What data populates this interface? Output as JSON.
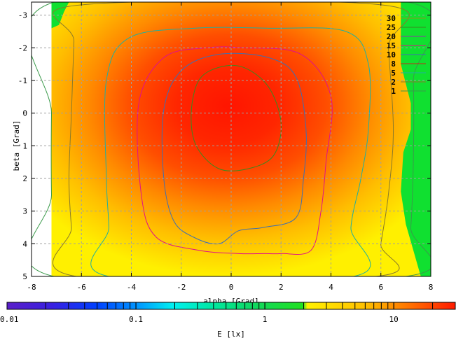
{
  "chart_data": {
    "type": "heatmap",
    "title": "",
    "xlabel": "alpha [Grad]",
    "ylabel": "beta [Grad]",
    "colorbar_label": "E [lx]",
    "xlim": [
      -8,
      8
    ],
    "ylim": [
      -3.4,
      5
    ],
    "y_inverted": true,
    "x_ticks": [
      "-8",
      "-6",
      "-4",
      "-2",
      "0",
      "2",
      "4",
      "6",
      "8"
    ],
    "y_ticks": [
      "-3",
      "-2",
      "-1",
      "0",
      "1",
      "2",
      "3",
      "4",
      "5"
    ],
    "colorbar_ticks": [
      "0.01",
      "0.1",
      "1",
      "10"
    ],
    "colorbar_scale": "log",
    "colorbar_range": [
      0.01,
      30
    ],
    "grid": true,
    "legend_position": "top-right",
    "contour_levels": [
      {
        "label": "30",
        "value": 30,
        "color": "#8a9a1c"
      },
      {
        "label": "25",
        "value": 25,
        "color": "#3a8a1e"
      },
      {
        "label": "20",
        "value": 20,
        "color": "#8a3fa0"
      },
      {
        "label": "15",
        "value": 15,
        "color": "#e0108a"
      },
      {
        "label": "10",
        "value": 10,
        "color": "#3f6fb0"
      },
      {
        "label": "8",
        "value": 8,
        "color": "#c03018"
      },
      {
        "label": "5",
        "value": 5,
        "color": "#1fb0a0"
      },
      {
        "label": "2",
        "value": 2,
        "color": "#8a7a2a"
      },
      {
        "label": "1",
        "value": 1,
        "color": "#3a9a4a"
      }
    ],
    "contours": [
      {
        "level": 25,
        "points": [
          [
            -1.3,
            -1.0
          ],
          [
            -0.5,
            -1.4
          ],
          [
            0.5,
            -1.4
          ],
          [
            1.5,
            -0.8
          ],
          [
            2.0,
            0.3
          ],
          [
            1.7,
            1.3
          ],
          [
            0.7,
            1.7
          ],
          [
            -0.5,
            1.7
          ],
          [
            -1.4,
            1.0
          ],
          [
            -1.6,
            0.0
          ]
        ]
      },
      {
        "level": 15,
        "points": [
          [
            -3.7,
            -0.3
          ],
          [
            -2.7,
            -1.7
          ],
          [
            -1.0,
            -2.0
          ],
          [
            0.5,
            -2.0
          ],
          [
            2.8,
            -1.8
          ],
          [
            4.0,
            -0.5
          ],
          [
            3.8,
            1.5
          ],
          [
            3.6,
            3.0
          ],
          [
            3.2,
            4.2
          ],
          [
            2.0,
            4.3
          ],
          [
            1.3,
            4.3
          ],
          [
            0.3,
            4.3
          ],
          [
            -1.3,
            4.2
          ],
          [
            -3.0,
            3.8
          ],
          [
            -3.6,
            2.5
          ]
        ]
      },
      {
        "level": 10,
        "points": [
          [
            -2.7,
            -0.1
          ],
          [
            -2.0,
            -1.3
          ],
          [
            -0.5,
            -1.8
          ],
          [
            1.5,
            -1.7
          ],
          [
            2.6,
            -1.1
          ],
          [
            3.0,
            0.5
          ],
          [
            2.9,
            2.0
          ],
          [
            2.6,
            3.2
          ],
          [
            1.3,
            3.5
          ],
          [
            0.3,
            3.6
          ],
          [
            -0.5,
            4.0
          ],
          [
            -1.5,
            3.8
          ],
          [
            -2.3,
            3.3
          ],
          [
            -2.7,
            2.0
          ]
        ]
      },
      {
        "level": 5,
        "points": [
          [
            -5.0,
            -1.0
          ],
          [
            -4.1,
            -2.3
          ],
          [
            -1.5,
            -2.6
          ],
          [
            1.5,
            -2.6
          ],
          [
            4.6,
            -2.5
          ],
          [
            5.5,
            -1.5
          ],
          [
            5.5,
            0.5
          ],
          [
            5.2,
            2.0
          ],
          [
            4.8,
            3.5
          ],
          [
            4.9,
            5.0
          ],
          [
            -4.9,
            5.0
          ],
          [
            -4.9,
            3.5
          ],
          [
            -5.0,
            2.0
          ]
        ]
      },
      {
        "level": 2,
        "points": [
          [
            -6.3,
            -2.2
          ],
          [
            -6.2,
            -3.3
          ],
          [
            6.2,
            -3.3
          ],
          [
            6.3,
            -2.0
          ],
          [
            6.5,
            0.5
          ],
          [
            6.3,
            2.5
          ],
          [
            6.0,
            4.0
          ],
          [
            5.8,
            5.0
          ],
          [
            -6.2,
            5.0
          ],
          [
            -6.4,
            3.5
          ],
          [
            -6.5,
            2.0
          ],
          [
            -6.4,
            0.0
          ]
        ]
      },
      {
        "level": 1,
        "points": [
          [
            -7.1,
            -3.4
          ],
          [
            7.1,
            -3.4
          ],
          [
            7.3,
            -1.0
          ],
          [
            7.3,
            1.5
          ],
          [
            7.2,
            3.5
          ],
          [
            7.0,
            5.0
          ],
          [
            -7.1,
            5.0
          ],
          [
            -7.2,
            2.5
          ],
          [
            -7.2,
            0.0
          ]
        ]
      }
    ],
    "low_region_color": "#10e030",
    "region_x_range": [
      -7.2,
      7.9
    ]
  }
}
